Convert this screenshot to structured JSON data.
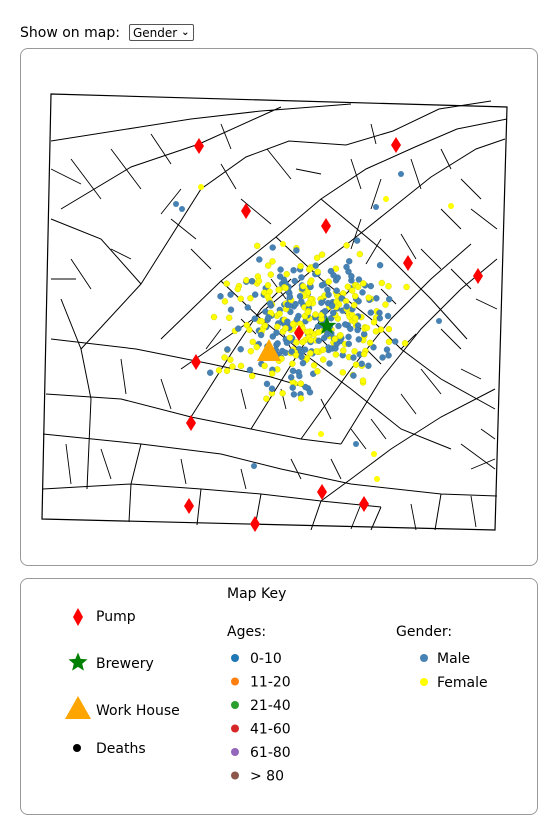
{
  "controls": {
    "label": "Show on map:",
    "select_value": "Gender"
  },
  "colors": {
    "pump": "#ff0000",
    "brewery": "#008000",
    "workhouse": "#ffa500",
    "male": "#4682b4",
    "female": "#ffff00",
    "ages": [
      "#1f77b4",
      "#ff7f0e",
      "#2ca02c",
      "#d62728",
      "#9467bd",
      "#8c564b"
    ]
  },
  "key": {
    "title": "Map Key",
    "symbols": [
      {
        "name": "pump",
        "label": "Pump"
      },
      {
        "name": "brewery",
        "label": "Brewery"
      },
      {
        "name": "workhouse",
        "label": "Work House"
      },
      {
        "name": "deaths",
        "label": "Deaths"
      }
    ],
    "ages_title": "Ages:",
    "ages": [
      "0-10",
      "11-20",
      "21-40",
      "41-60",
      "61-80",
      "> 80"
    ],
    "gender_title": "Gender:",
    "genders": [
      "Male",
      "Female"
    ]
  }
}
